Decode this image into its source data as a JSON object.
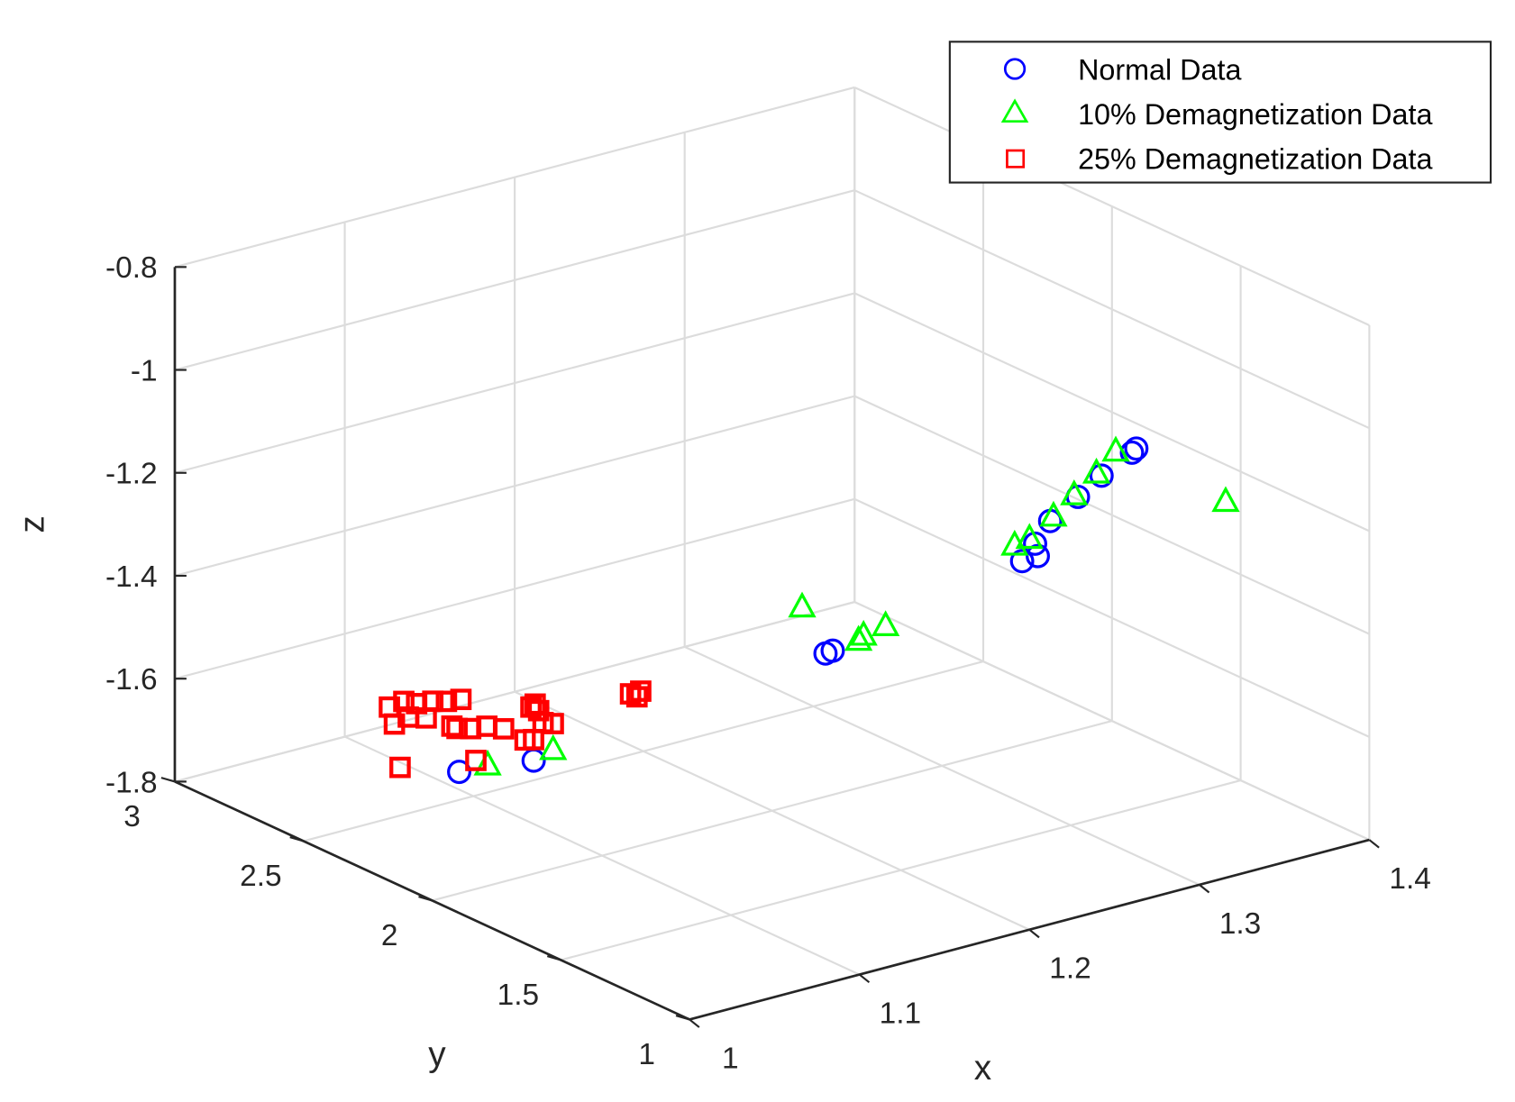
{
  "chart_data": {
    "type": "scatter",
    "projection": "3d",
    "title": "",
    "xlabel": "x",
    "ylabel": "y",
    "zlabel": "z",
    "xlim": [
      1,
      1.4
    ],
    "ylim": [
      1,
      3
    ],
    "zlim": [
      -1.8,
      -0.8
    ],
    "xticks": [
      "1",
      "1.1",
      "1.2",
      "1.3",
      "1.4"
    ],
    "yticks": [
      "1",
      "1.5",
      "2",
      "2.5",
      "3"
    ],
    "zticks": [
      "-1.8",
      "-1.6",
      "-1.4",
      "-1.2",
      "-1",
      "-0.8"
    ],
    "grid": true,
    "legend_position": "top-right",
    "series": [
      {
        "name": "Normal Data",
        "marker": "circle",
        "color": "#0000ff",
        "points": [
          [
            1.388,
            1.826,
            -1.22
          ],
          [
            1.383,
            1.81,
            -1.22
          ],
          [
            1.353,
            1.73,
            -1.22
          ],
          [
            1.327,
            1.65,
            -1.22
          ],
          [
            1.297,
            1.56,
            -1.22
          ],
          [
            1.273,
            1.46,
            -1.22
          ],
          [
            1.254,
            1.385,
            -1.22
          ],
          [
            1.264,
            1.39,
            -1.22
          ],
          [
            1.264,
            2.215,
            -1.6
          ],
          [
            1.269,
            2.22,
            -1.6
          ],
          [
            1.106,
            2.595,
            -1.78
          ],
          [
            1.143,
            2.55,
            -1.78
          ]
        ]
      },
      {
        "name": "10% Demagnetization Data",
        "marker": "triangle",
        "color": "#00ff00",
        "points": [
          [
            1.378,
            1.84,
            -1.22
          ],
          [
            1.353,
            1.75,
            -1.22
          ],
          [
            1.327,
            1.665,
            -1.22
          ],
          [
            1.302,
            1.58,
            -1.22
          ],
          [
            1.275,
            1.495,
            -1.22
          ],
          [
            1.264,
            1.48,
            -1.22
          ],
          [
            1.37,
            1.36,
            -1.2
          ],
          [
            1.251,
            2.22,
            -1.5
          ],
          [
            1.272,
            2.12,
            -1.55
          ],
          [
            1.288,
            2.14,
            -1.55
          ],
          [
            1.266,
            2.1,
            -1.55
          ],
          [
            1.122,
            2.59,
            -1.78
          ],
          [
            1.159,
            2.58,
            -1.78
          ]
        ]
      },
      {
        "name": "25% Demagnetization Data",
        "marker": "square",
        "color": "#ff0000",
        "points": [
          [
            1.099,
            2.82,
            -1.7
          ],
          [
            1.109,
            2.83,
            -1.7
          ],
          [
            1.112,
            2.8,
            -1.7
          ],
          [
            1.12,
            2.79,
            -1.7
          ],
          [
            1.125,
            2.77,
            -1.7
          ],
          [
            1.132,
            2.76,
            -1.7
          ],
          [
            1.104,
            2.71,
            -1.7
          ],
          [
            1.098,
            2.74,
            -1.7
          ],
          [
            1.107,
            2.61,
            -1.7
          ],
          [
            1.112,
            2.59,
            -1.7
          ],
          [
            1.12,
            2.58,
            -1.7
          ],
          [
            1.107,
            2.63,
            -1.7
          ],
          [
            1.156,
            2.63,
            -1.7
          ],
          [
            1.152,
            2.62,
            -1.7
          ],
          [
            1.144,
            2.52,
            -1.7
          ],
          [
            1.147,
            2.5,
            -1.7
          ],
          [
            1.152,
            2.59,
            -1.7
          ],
          [
            1.2,
            2.55,
            -1.7
          ],
          [
            1.206,
            2.55,
            -1.7
          ],
          [
            1.2,
            2.525,
            -1.7
          ],
          [
            1.108,
            2.86,
            -1.75
          ],
          [
            1.075,
            2.62,
            -1.75
          ],
          [
            1.145,
            2.68,
            -1.75
          ],
          [
            1.144,
            2.59,
            -1.75
          ],
          [
            1.1475,
            2.58,
            -1.75
          ],
          [
            1.109,
            2.55,
            -1.75
          ]
        ]
      }
    ]
  }
}
